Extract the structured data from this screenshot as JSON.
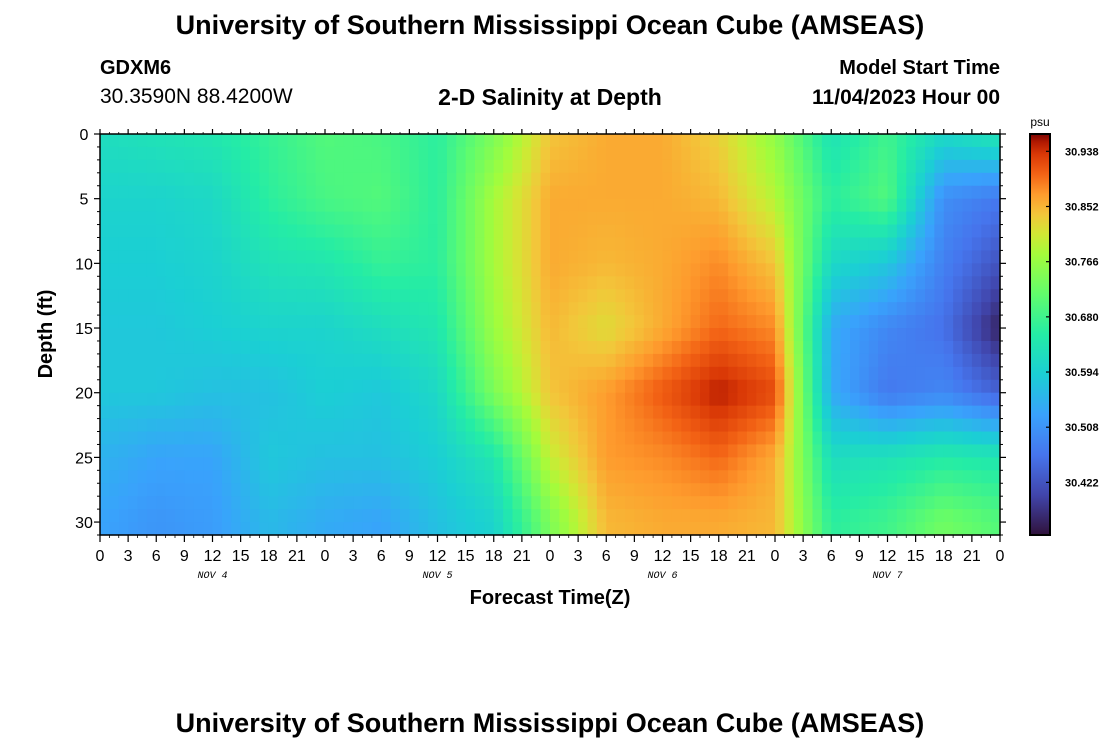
{
  "header": {
    "title": "University of Southern Mississippi Ocean Cube (AMSEAS)",
    "station": "GDXM6",
    "coords": "30.3590N  88.4200W",
    "product": "2-D Salinity at Depth",
    "model_start_label": "Model Start Time",
    "model_start_date": "11/04/2023 Hour 00"
  },
  "footer": {
    "title": "University of Southern Mississippi Ocean Cube (AMSEAS)"
  },
  "chart_data": {
    "type": "heatmap",
    "title": "2-D Salinity at Depth",
    "xlabel": "Forecast Time(Z)",
    "ylabel": "Depth (ft)",
    "x_tick_labels": [
      "0",
      "3",
      "6",
      "9",
      "12",
      "15",
      "18",
      "21",
      "0",
      "3",
      "6",
      "9",
      "12",
      "15",
      "18",
      "21",
      "0",
      "3",
      "6",
      "9",
      "12",
      "15",
      "18",
      "21",
      "0",
      "3",
      "6",
      "9",
      "12",
      "15",
      "18",
      "21",
      "0"
    ],
    "day_labels": [
      "NOV 4",
      "NOV 5",
      "NOV 6",
      "NOV 7"
    ],
    "x_range_hours": [
      0,
      96
    ],
    "y_ticks": [
      0,
      5,
      10,
      15,
      20,
      25,
      30
    ],
    "ylim": [
      0,
      31
    ],
    "y_inverted": true,
    "colorbar": {
      "unit": "psu",
      "ticks": [
        30.938,
        30.852,
        30.766,
        30.68,
        30.594,
        30.508,
        30.422
      ],
      "range": [
        30.34,
        30.965
      ]
    },
    "depths": [
      0,
      5,
      10,
      15,
      20,
      25,
      30
    ],
    "times_hours": [
      0,
      6,
      12,
      18,
      24,
      30,
      36,
      42,
      48,
      54,
      60,
      66,
      72,
      78,
      84,
      90,
      96
    ],
    "values": [
      [
        30.62,
        30.63,
        30.64,
        30.67,
        30.7,
        30.69,
        30.66,
        30.74,
        30.84,
        30.86,
        30.86,
        30.83,
        30.76,
        30.63,
        30.68,
        30.61,
        30.64
      ],
      [
        30.6,
        30.6,
        30.61,
        30.66,
        30.69,
        30.7,
        30.66,
        30.78,
        30.86,
        30.86,
        30.86,
        30.85,
        30.79,
        30.66,
        30.7,
        30.5,
        30.47
      ],
      [
        30.59,
        30.59,
        30.6,
        30.63,
        30.64,
        30.67,
        30.66,
        30.78,
        30.86,
        30.85,
        30.86,
        30.88,
        30.84,
        30.61,
        30.58,
        30.48,
        30.42
      ],
      [
        30.58,
        30.58,
        30.59,
        30.6,
        30.6,
        30.62,
        30.64,
        30.77,
        30.85,
        30.82,
        30.86,
        30.9,
        30.88,
        30.54,
        30.49,
        30.46,
        30.36
      ],
      [
        30.58,
        30.58,
        30.57,
        30.57,
        30.59,
        30.58,
        30.61,
        30.74,
        30.84,
        30.87,
        30.91,
        30.95,
        30.92,
        30.54,
        30.47,
        30.49,
        30.44
      ],
      [
        30.55,
        30.53,
        30.53,
        30.58,
        30.57,
        30.57,
        30.59,
        30.64,
        30.8,
        30.87,
        30.88,
        30.9,
        30.86,
        30.62,
        30.63,
        30.65,
        30.64
      ],
      [
        30.53,
        30.51,
        30.52,
        30.56,
        30.54,
        30.53,
        30.57,
        30.6,
        30.74,
        30.85,
        30.86,
        30.86,
        30.85,
        30.66,
        30.68,
        30.73,
        30.7
      ]
    ]
  }
}
